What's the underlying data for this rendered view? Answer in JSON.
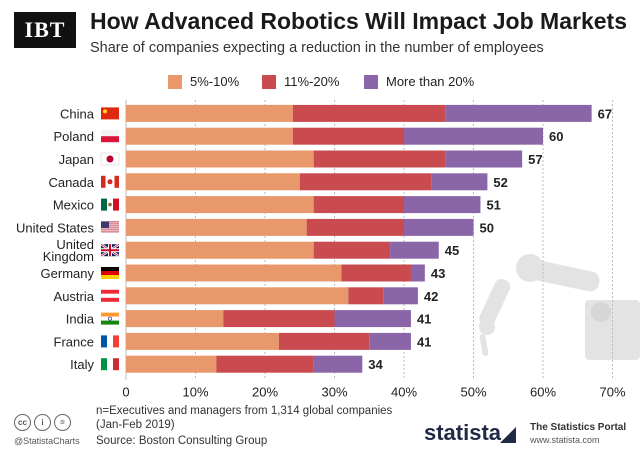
{
  "brand_logo": "IBT",
  "header": {
    "title": "How Advanced Robotics Will Impact Job Markets",
    "subtitle": "Share of companies expecting a reduction in the number of employees"
  },
  "chart_data": {
    "type": "bar",
    "orientation": "horizontal",
    "stacked": true,
    "categories": [
      "China",
      "Poland",
      "Japan",
      "Canada",
      "Mexico",
      "United States",
      "United Kingdom",
      "Germany",
      "Austria",
      "India",
      "France",
      "Italy"
    ],
    "series": [
      {
        "name": "5%-10%",
        "color": "#e8986a",
        "values": [
          24,
          24,
          27,
          25,
          27,
          26,
          27,
          31,
          32,
          14,
          22,
          13
        ]
      },
      {
        "name": "11%-20%",
        "color": "#c94b4f",
        "values": [
          22,
          16,
          19,
          19,
          13,
          14,
          11,
          10,
          5,
          16,
          13,
          14
        ]
      },
      {
        "name": "More than 20%",
        "color": "#8a66a8",
        "values": [
          21,
          20,
          11,
          8,
          11,
          10,
          7,
          2,
          5,
          11,
          6,
          7
        ]
      }
    ],
    "totals": [
      67,
      60,
      57,
      52,
      51,
      50,
      45,
      43,
      42,
      41,
      41,
      34
    ],
    "xlim": [
      0,
      70
    ],
    "xticks": [
      "0",
      "10%",
      "20%",
      "30%",
      "40%",
      "50%",
      "60%",
      "70%"
    ],
    "flags": [
      "cn",
      "pl",
      "jp",
      "ca",
      "mx",
      "us",
      "gb",
      "de",
      "at",
      "in",
      "fr",
      "it"
    ],
    "grid": "vertical-dashed",
    "legend_position": "top"
  },
  "footer": {
    "note": "n=Executives and managers from 1,314 global companies (Jan-Feb 2019)",
    "source": "Source: Boston Consulting Group",
    "handle": "@StatistaCharts",
    "brand": "statista",
    "portal": "The Statistics Portal",
    "portal_url": "www.statista.com",
    "license_icons": [
      "cc",
      "i",
      "="
    ]
  }
}
